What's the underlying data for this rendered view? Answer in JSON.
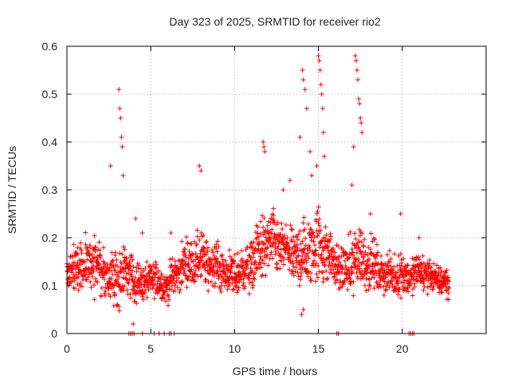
{
  "chart_data": {
    "type": "scatter",
    "title": "Day 323 of 2025, SRMTID for receiver rio2",
    "xlabel": "GPS time / hours",
    "ylabel": "SRMTID / TECUs",
    "xlim": [
      0,
      25
    ],
    "ylim": [
      0,
      0.6
    ],
    "xticks": [
      0,
      5,
      10,
      15,
      20
    ],
    "yticks": [
      0,
      0.1,
      0.2,
      0.3,
      0.4,
      0.5,
      0.6
    ],
    "xtick_labels": [
      "0",
      "5",
      "10",
      "15",
      "20"
    ],
    "ytick_labels": [
      "0",
      "0.1",
      "0.2",
      "0.3",
      "0.4",
      "0.5",
      "0.6"
    ],
    "grid": true,
    "marker": "plus",
    "color": "#ff0000",
    "envelope": {
      "hours": [
        0,
        0.5,
        1,
        1.5,
        2,
        2.5,
        3,
        3.2,
        3.5,
        4,
        4.5,
        5,
        5.5,
        6,
        6.5,
        7,
        7.5,
        8,
        8.5,
        9,
        9.5,
        10,
        10.5,
        11,
        11.5,
        12,
        12.5,
        13,
        13.5,
        14,
        14.5,
        15,
        15.5,
        16,
        16.5,
        17,
        17.3,
        17.7,
        18,
        18.5,
        19,
        19.5,
        20,
        20.5,
        21,
        21.5,
        22,
        22.5,
        22.8
      ],
      "center": [
        0.12,
        0.14,
        0.13,
        0.15,
        0.14,
        0.12,
        0.11,
        0.13,
        0.12,
        0.11,
        0.1,
        0.12,
        0.11,
        0.1,
        0.12,
        0.14,
        0.15,
        0.16,
        0.15,
        0.14,
        0.12,
        0.12,
        0.13,
        0.15,
        0.18,
        0.19,
        0.18,
        0.17,
        0.16,
        0.17,
        0.18,
        0.19,
        0.16,
        0.14,
        0.13,
        0.15,
        0.17,
        0.16,
        0.15,
        0.13,
        0.12,
        0.12,
        0.13,
        0.12,
        0.13,
        0.12,
        0.11,
        0.11,
        0.1
      ],
      "spread": [
        0.04,
        0.07,
        0.06,
        0.08,
        0.08,
        0.07,
        0.08,
        0.1,
        0.06,
        0.06,
        0.05,
        0.05,
        0.05,
        0.05,
        0.05,
        0.06,
        0.06,
        0.08,
        0.06,
        0.06,
        0.05,
        0.06,
        0.06,
        0.07,
        0.09,
        0.08,
        0.08,
        0.07,
        0.07,
        0.1,
        0.1,
        0.11,
        0.08,
        0.06,
        0.06,
        0.09,
        0.1,
        0.08,
        0.07,
        0.06,
        0.05,
        0.05,
        0.06,
        0.05,
        0.05,
        0.05,
        0.04,
        0.04,
        0.04
      ]
    },
    "spikes": [
      {
        "x": 2.6,
        "y": 0.35
      },
      {
        "x": 3.1,
        "y": 0.51
      },
      {
        "x": 3.15,
        "y": 0.47
      },
      {
        "x": 3.2,
        "y": 0.45
      },
      {
        "x": 3.25,
        "y": 0.41
      },
      {
        "x": 3.3,
        "y": 0.39
      },
      {
        "x": 3.35,
        "y": 0.33
      },
      {
        "x": 7.9,
        "y": 0.35
      },
      {
        "x": 8.0,
        "y": 0.34
      },
      {
        "x": 11.7,
        "y": 0.4
      },
      {
        "x": 11.75,
        "y": 0.39
      },
      {
        "x": 11.8,
        "y": 0.38
      },
      {
        "x": 13.9,
        "y": 0.41
      },
      {
        "x": 14.05,
        "y": 0.55
      },
      {
        "x": 14.1,
        "y": 0.53
      },
      {
        "x": 14.2,
        "y": 0.51
      },
      {
        "x": 14.3,
        "y": 0.47
      },
      {
        "x": 14.5,
        "y": 0.38
      },
      {
        "x": 14.6,
        "y": 0.33
      },
      {
        "x": 14.9,
        "y": 0.35
      },
      {
        "x": 15.0,
        "y": 0.58
      },
      {
        "x": 15.05,
        "y": 0.57
      },
      {
        "x": 15.1,
        "y": 0.55
      },
      {
        "x": 15.15,
        "y": 0.52
      },
      {
        "x": 15.2,
        "y": 0.5
      },
      {
        "x": 15.25,
        "y": 0.47
      },
      {
        "x": 15.3,
        "y": 0.42
      },
      {
        "x": 15.35,
        "y": 0.37
      },
      {
        "x": 17.2,
        "y": 0.58
      },
      {
        "x": 17.25,
        "y": 0.57
      },
      {
        "x": 17.3,
        "y": 0.55
      },
      {
        "x": 17.35,
        "y": 0.53
      },
      {
        "x": 17.4,
        "y": 0.49
      },
      {
        "x": 17.45,
        "y": 0.48
      },
      {
        "x": 17.5,
        "y": 0.45
      },
      {
        "x": 17.55,
        "y": 0.44
      },
      {
        "x": 17.6,
        "y": 0.42
      },
      {
        "x": 17.0,
        "y": 0.31
      },
      {
        "x": 17.1,
        "y": 0.39
      },
      {
        "x": 18.1,
        "y": 0.25
      },
      {
        "x": 19.9,
        "y": 0.25
      },
      {
        "x": 4.1,
        "y": 0.24
      },
      {
        "x": 4.5,
        "y": 0.21
      },
      {
        "x": 6.2,
        "y": 0.21
      },
      {
        "x": 12.9,
        "y": 0.3
      },
      {
        "x": 13.3,
        "y": 0.32
      },
      {
        "x": 21.0,
        "y": 0.2
      },
      {
        "x": 14.0,
        "y": 0.04
      },
      {
        "x": 14.1,
        "y": 0.05
      },
      {
        "x": 3.95,
        "y": 0.02
      }
    ],
    "zero_points_x": [
      3.7,
      3.8,
      3.9,
      4.0,
      4.5,
      5.2,
      5.5,
      5.8,
      6.1,
      6.2,
      6.4,
      16.1,
      16.2,
      20.4,
      20.5,
      20.6,
      20.7
    ]
  }
}
